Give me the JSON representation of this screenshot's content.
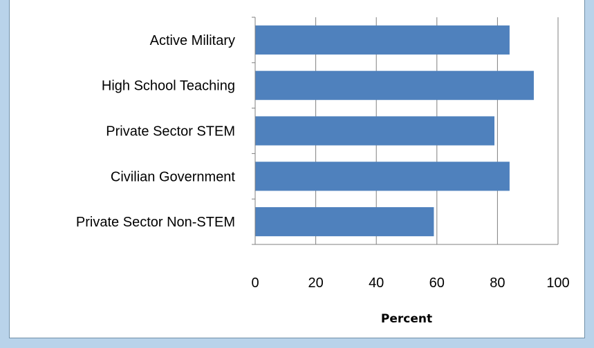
{
  "chart_data": {
    "type": "bar",
    "orientation": "horizontal",
    "categories": [
      "Active Military",
      "High School Teaching",
      "Private Sector STEM",
      "Civilian Government",
      "Private Sector Non-STEM"
    ],
    "values": [
      84,
      92,
      79,
      84,
      59
    ],
    "xlabel": "Percent",
    "ylabel": "",
    "xlim": [
      0,
      100
    ],
    "xticks": [
      "0",
      "20",
      "40",
      "60",
      "80",
      "100"
    ],
    "grid": "vertical",
    "colors": {
      "bar": "#4f81bd",
      "grid": "#7f7f7f",
      "frame_background": "#b9d3ea"
    }
  }
}
